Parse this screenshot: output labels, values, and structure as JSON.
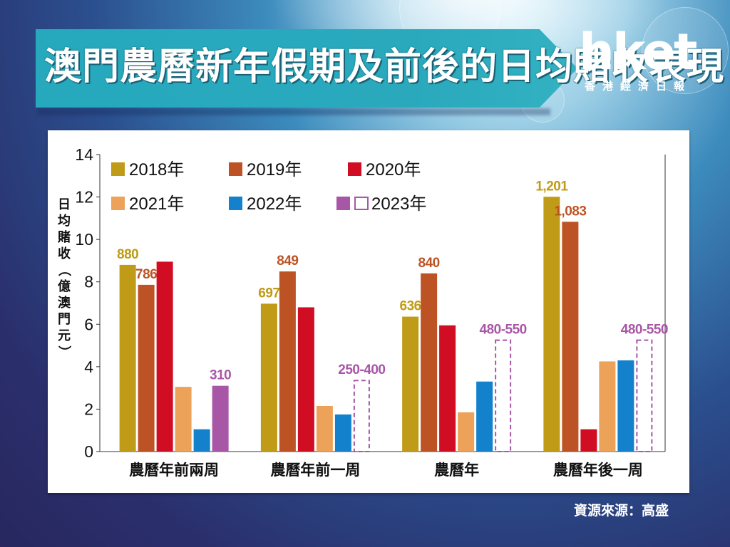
{
  "header": {
    "title": "澳門農曆新年假期及前後的日均賭收表現",
    "logo_main": "hket",
    "logo_sub": "香港經濟日報"
  },
  "source": "資源來源：高盛",
  "colors": {
    "y2018": "#c09b17",
    "y2019": "#bd5325",
    "y2020": "#d10d23",
    "y2021": "#eda25a",
    "y2022": "#1481cc",
    "y2023": "#a856a6"
  },
  "chart_data": {
    "type": "bar",
    "ylabel": "日均賭收（億澳門元）",
    "ylim": [
      0,
      14
    ],
    "yticks": [
      0,
      2,
      4,
      6,
      8,
      10,
      12,
      14
    ],
    "categories": [
      "農曆年前兩周",
      "農曆年前一周",
      "農曆年",
      "農曆年後一周"
    ],
    "legend_placement": "top-left",
    "series": [
      {
        "name": "2018年",
        "color_key": "y2018",
        "values": [
          8.8,
          6.97,
          6.36,
          12.01
        ],
        "labels": [
          "880",
          "697",
          "636",
          "1,201"
        ]
      },
      {
        "name": "2019年",
        "color_key": "y2019",
        "values": [
          7.86,
          8.49,
          8.4,
          10.83
        ],
        "labels": [
          "786",
          "849",
          "840",
          "1,083"
        ]
      },
      {
        "name": "2020年",
        "color_key": "y2020",
        "values": [
          8.95,
          6.8,
          5.95,
          1.05
        ],
        "labels": [
          "",
          "",
          "",
          ""
        ]
      },
      {
        "name": "2021年",
        "color_key": "y2021",
        "values": [
          3.05,
          2.15,
          1.85,
          4.25
        ],
        "labels": [
          "",
          "",
          "",
          ""
        ]
      },
      {
        "name": "2022年",
        "color_key": "y2022",
        "values": [
          1.05,
          1.75,
          3.3,
          4.3
        ],
        "labels": [
          "",
          "",
          "",
          ""
        ]
      },
      {
        "name": "2023年",
        "color_key": "y2023",
        "values": [
          3.1,
          3.35,
          5.25,
          5.25
        ],
        "labels": [
          "310",
          "250-400",
          "480-550",
          "480-550"
        ],
        "estimate": [
          false,
          true,
          true,
          true
        ]
      }
    ]
  }
}
